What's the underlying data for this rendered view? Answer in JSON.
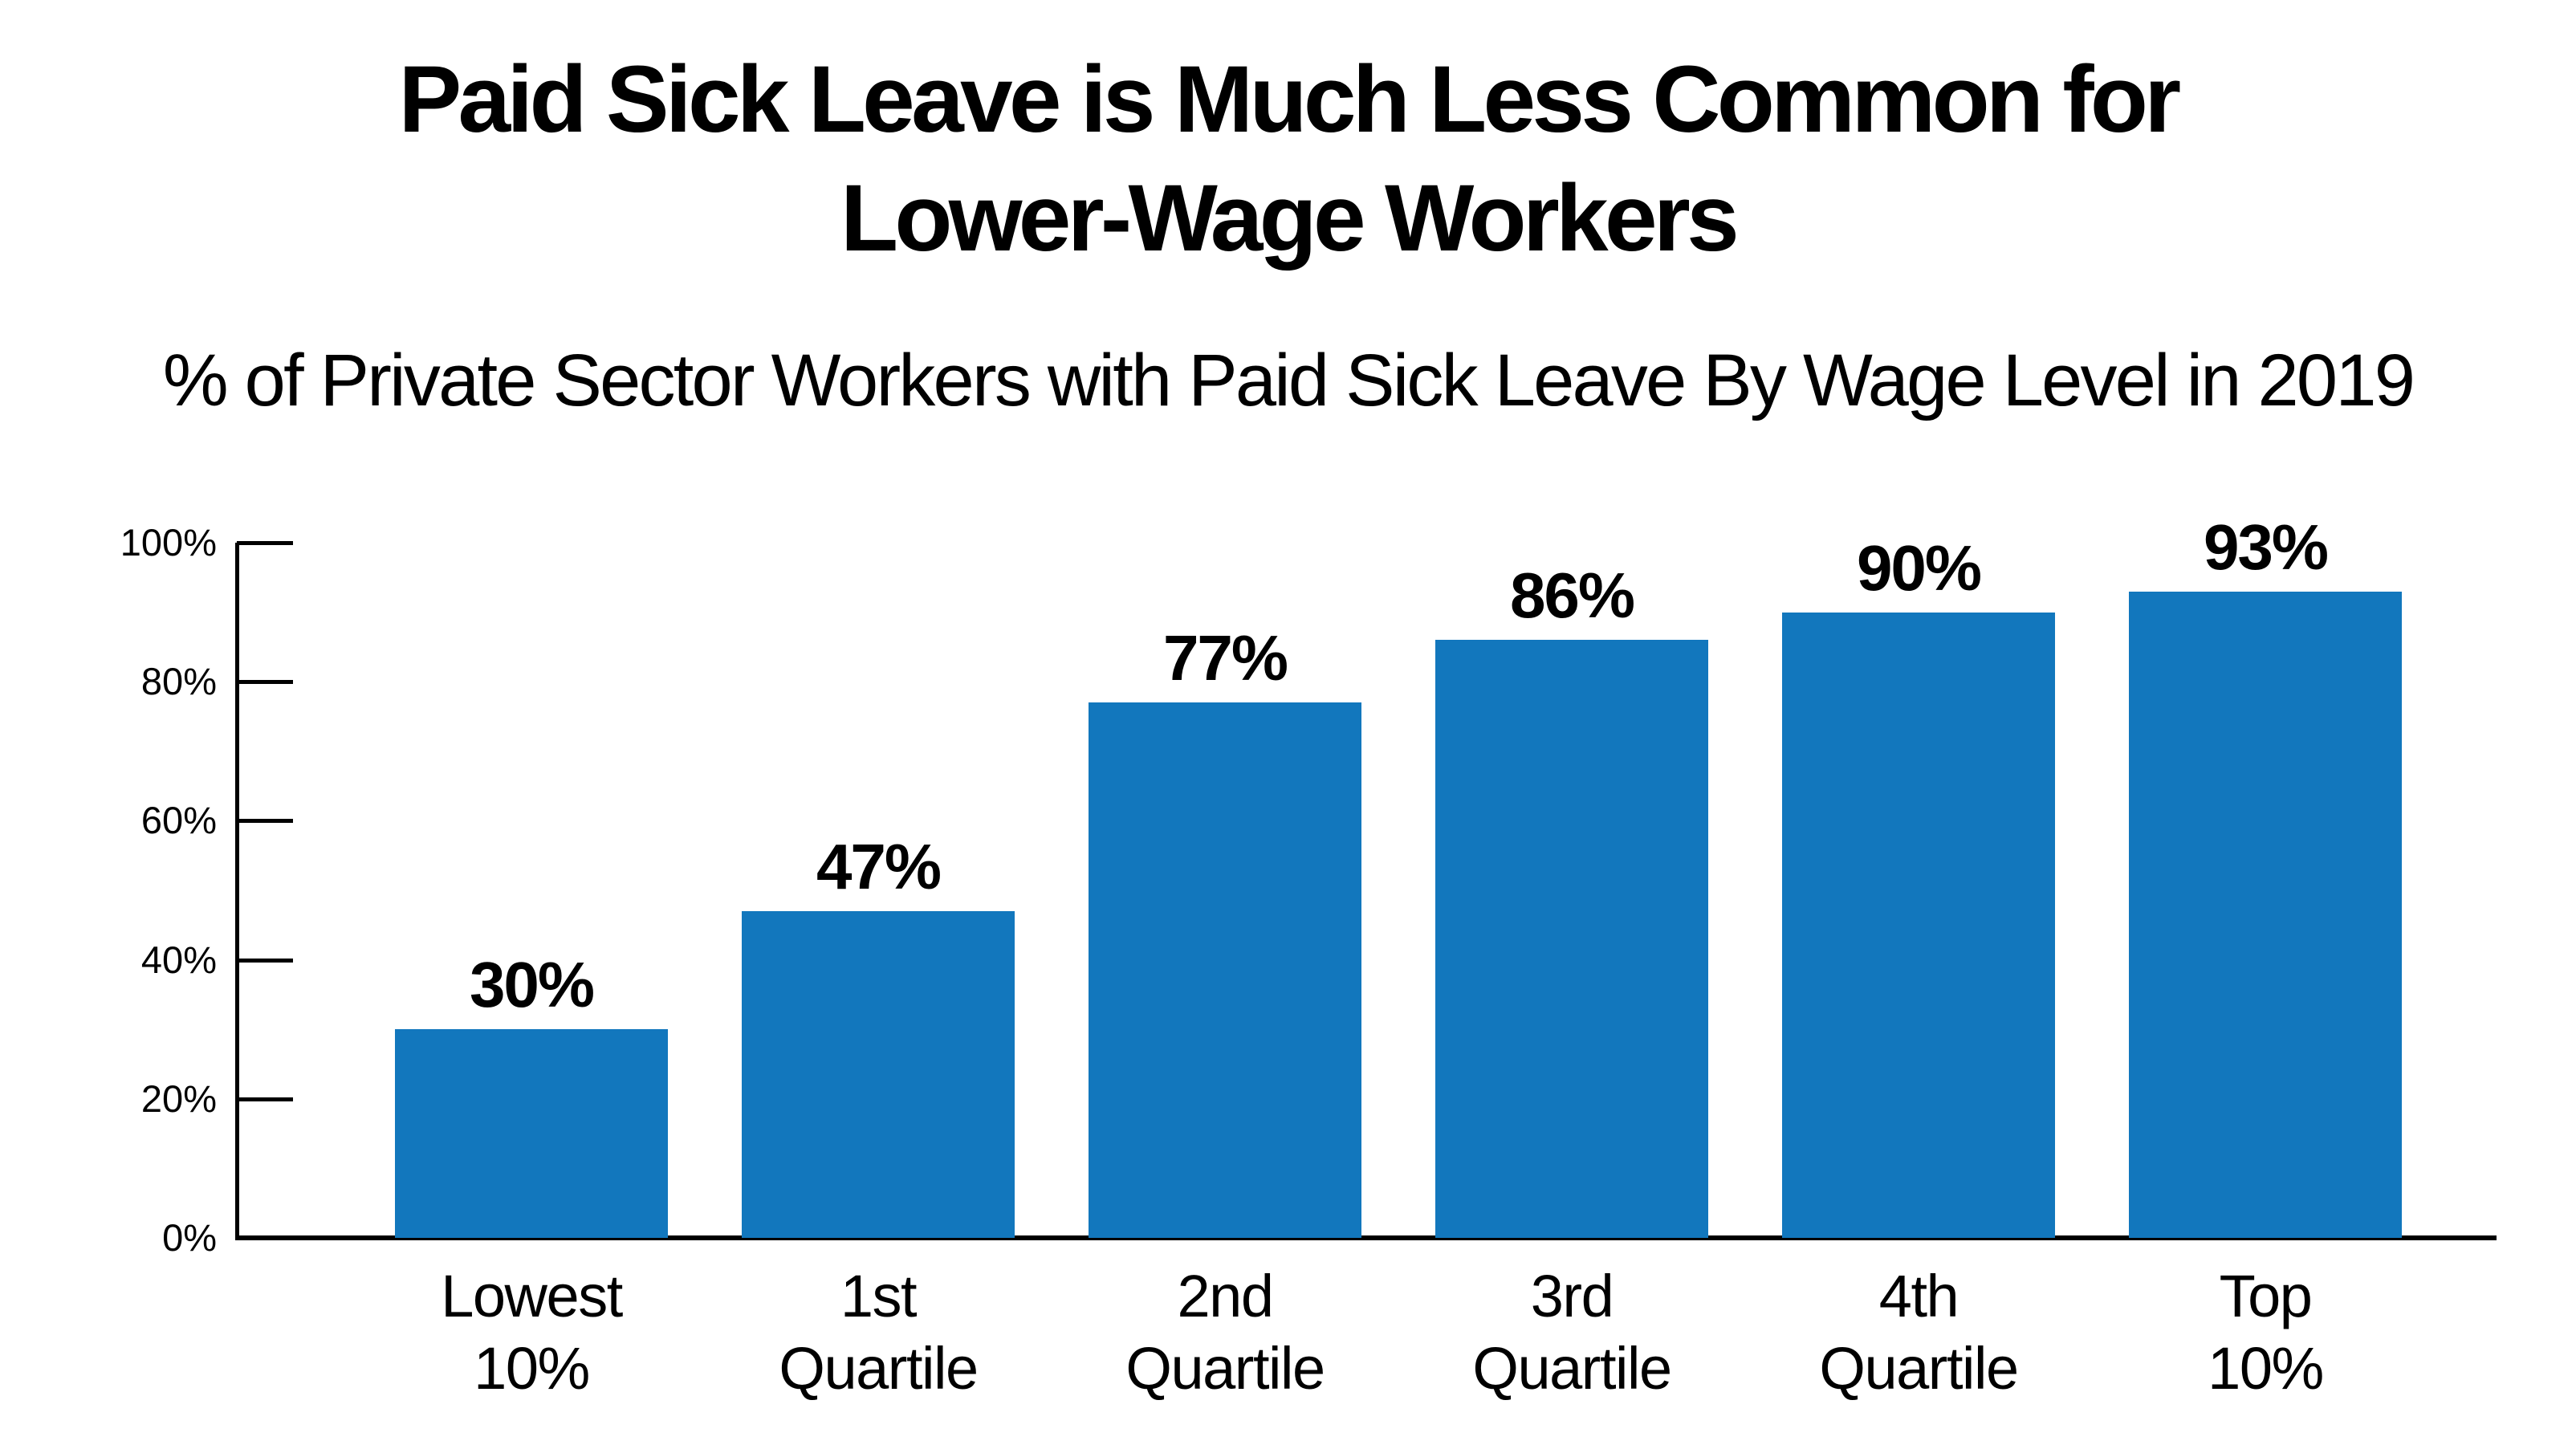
{
  "title": "Paid Sick Leave is Much Less Common for\nLower-Wage Workers",
  "subtitle": "% of Private Sector Workers with Paid Sick Leave By Wage Level in 2019",
  "colors": {
    "bar": "#1277BD",
    "axis": "#000000",
    "text": "#000000",
    "background": "#FFFFFF"
  },
  "chart_data": {
    "type": "bar",
    "title": "Paid Sick Leave is Much Less Common for Lower-Wage Workers",
    "subtitle": "% of Private Sector Workers with Paid Sick Leave By Wage Level in 2019",
    "categories": [
      "Lowest\n10%",
      "1st\nQuartile",
      "2nd\nQuartile",
      "3rd\nQuartile",
      "4th\nQuartile",
      "Top\n10%"
    ],
    "values": [
      30,
      47,
      77,
      86,
      90,
      93
    ],
    "value_labels": [
      "30%",
      "47%",
      "77%",
      "86%",
      "90%",
      "93%"
    ],
    "y_ticks": [
      "0%",
      "20%",
      "40%",
      "60%",
      "80%",
      "100%"
    ],
    "ylim": [
      0,
      100
    ],
    "xlabel": "",
    "ylabel": "",
    "grid": false,
    "legend": null
  }
}
